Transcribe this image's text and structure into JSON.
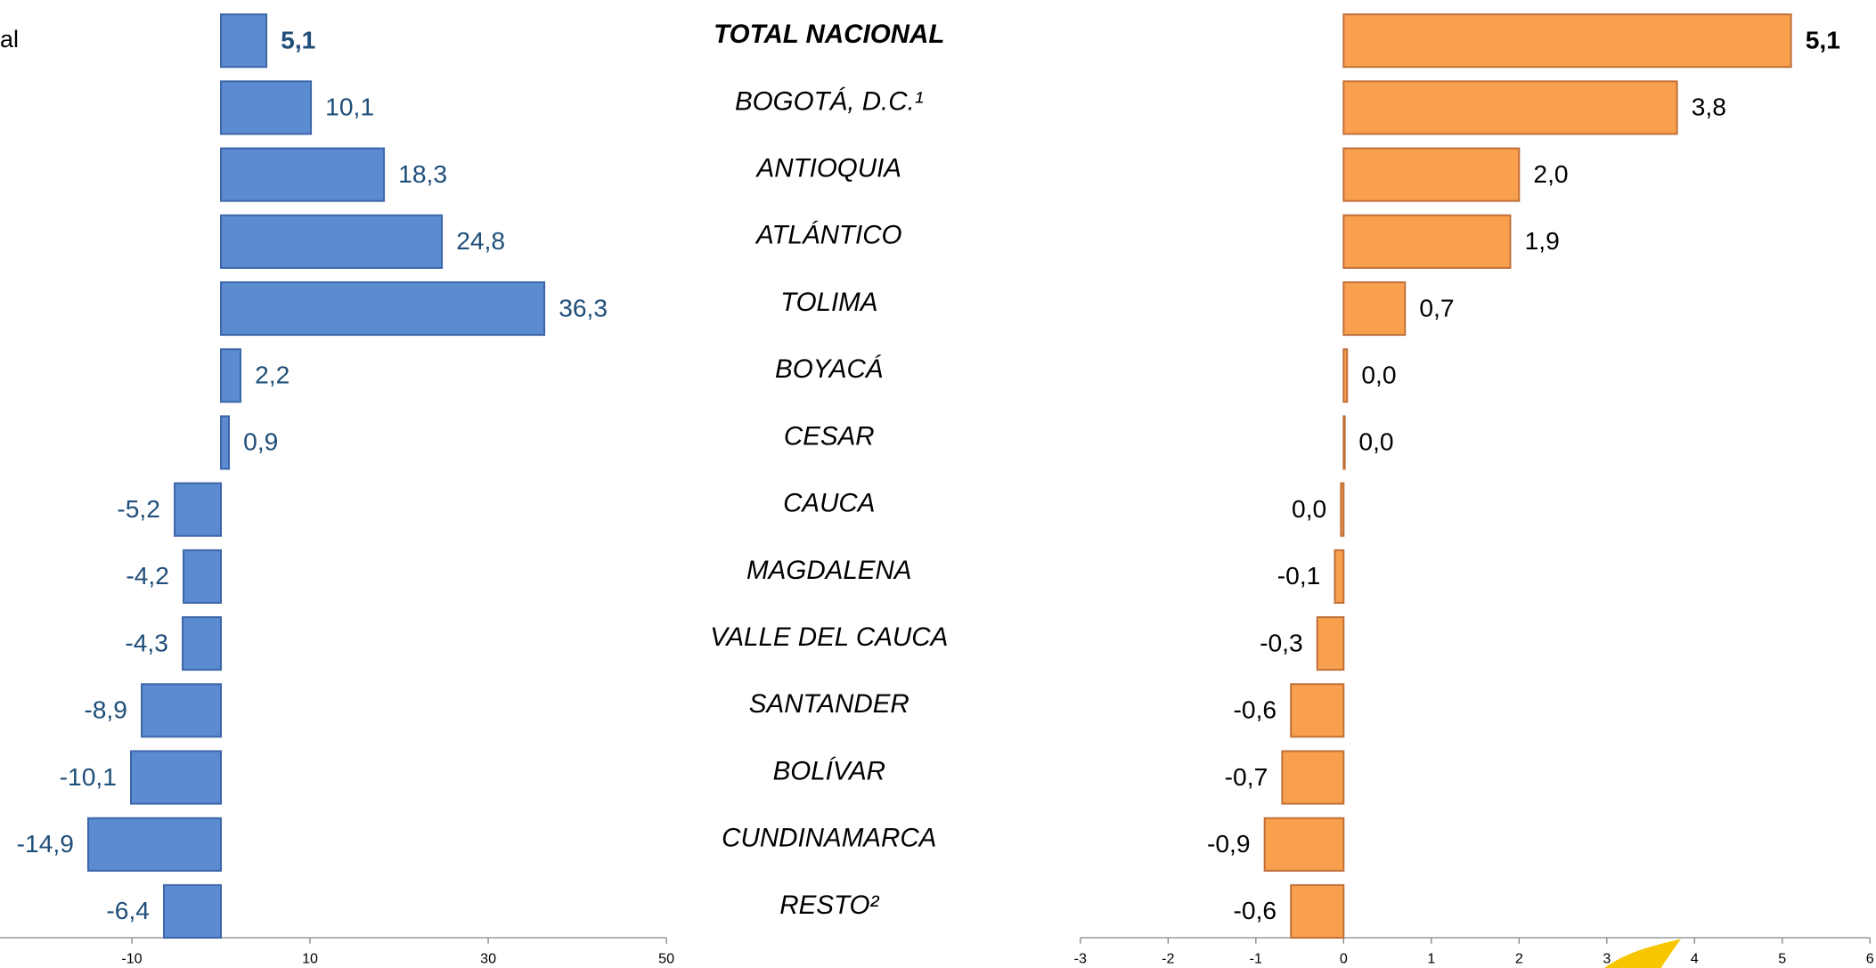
{
  "fragment": "al",
  "chart_data": [
    {
      "type": "bar",
      "categories": [
        "TOTAL NACIONAL",
        "BOGOTÁ, D.C.¹",
        "ANTIOQUIA",
        "ATLÁNTICO",
        "TOLIMA",
        "BOYACÁ",
        "CESAR",
        "CAUCA",
        "MAGDALENA",
        "VALLE DEL CAUCA",
        "SANTANDER",
        "BOLÍVAR",
        "CUNDINAMARCA",
        "RESTO²"
      ],
      "values": [
        5.1,
        10.1,
        18.3,
        24.8,
        36.3,
        2.2,
        0.9,
        -5.2,
        -4.2,
        -4.3,
        -8.9,
        -10.1,
        -14.9,
        -6.4
      ],
      "value_labels": [
        "5,1",
        "10,1",
        "18,3",
        "24,8",
        "36,3",
        "2,2",
        "0,9",
        "-5,2",
        "-4,2",
        "-4,3",
        "-8,9",
        "-10,1",
        "-14,9",
        "-6,4"
      ],
      "xlim": [
        -24.8,
        50
      ],
      "xticks": [
        -10,
        10,
        30,
        50
      ],
      "color": "#5b8bd0"
    },
    {
      "type": "bar",
      "values": [
        5.1,
        3.8,
        2.0,
        1.9,
        0.7,
        0.04,
        0.01,
        -0.03,
        -0.1,
        -0.3,
        -0.6,
        -0.7,
        -0.9,
        -0.6
      ],
      "value_labels": [
        "5,1",
        "3,8",
        "2,0",
        "1,9",
        "0,7",
        "0,0",
        "0,0",
        "0,0",
        "-0,1",
        "-0,3",
        "-0,6",
        "-0,7",
        "-0,9",
        "-0,6"
      ],
      "xlim": [
        -3,
        6
      ],
      "xticks": [
        -3,
        -2,
        -1,
        0,
        1,
        2,
        3,
        4,
        5,
        6
      ],
      "color": "#f9a04f"
    }
  ]
}
